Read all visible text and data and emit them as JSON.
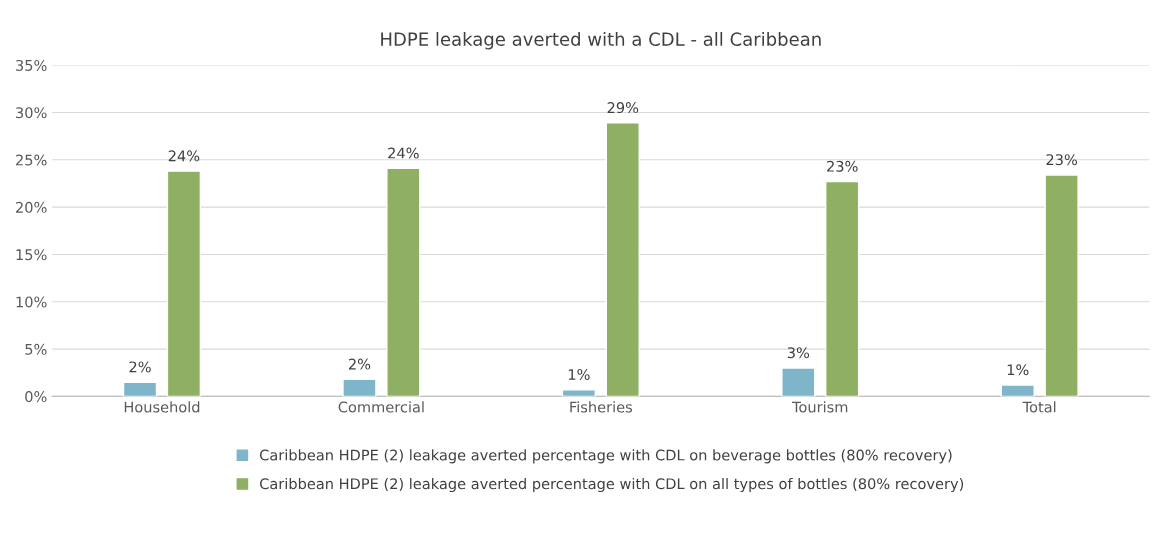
{
  "chart_data": {
    "type": "bar",
    "title": "HDPE leakage averted with a CDL - all Caribbean",
    "categories": [
      "Household",
      "Commercial",
      "Fisheries",
      "Tourism",
      "Total"
    ],
    "series": [
      {
        "name": "Caribbean HDPE (2) leakage averted percentage with CDL on beverage bottles (80% recovery)",
        "color": "#7eb5c9",
        "values": [
          1.5,
          1.8,
          0.7,
          3.0,
          1.2
        ],
        "value_labels": [
          "2%",
          "2%",
          "1%",
          "3%",
          "1%"
        ]
      },
      {
        "name": "Caribbean HDPE (2) leakage averted percentage with CDL on all types of bottles (80% recovery)",
        "color": "#8fb063",
        "values": [
          23.8,
          24.1,
          28.9,
          22.7,
          23.4
        ],
        "value_labels": [
          "24%",
          "24%",
          "29%",
          "23%",
          "23%"
        ]
      }
    ],
    "ylim": [
      0,
      35
    ],
    "yticks": [
      {
        "value": 0,
        "label": "0%"
      },
      {
        "value": 5,
        "label": "5%"
      },
      {
        "value": 10,
        "label": "10%"
      },
      {
        "value": 15,
        "label": "15%"
      },
      {
        "value": 20,
        "label": "20%"
      },
      {
        "value": 25,
        "label": "25%"
      },
      {
        "value": 30,
        "label": "30%"
      },
      {
        "value": 35,
        "label": "35%"
      }
    ],
    "grid": "y",
    "legend": "bottom"
  }
}
